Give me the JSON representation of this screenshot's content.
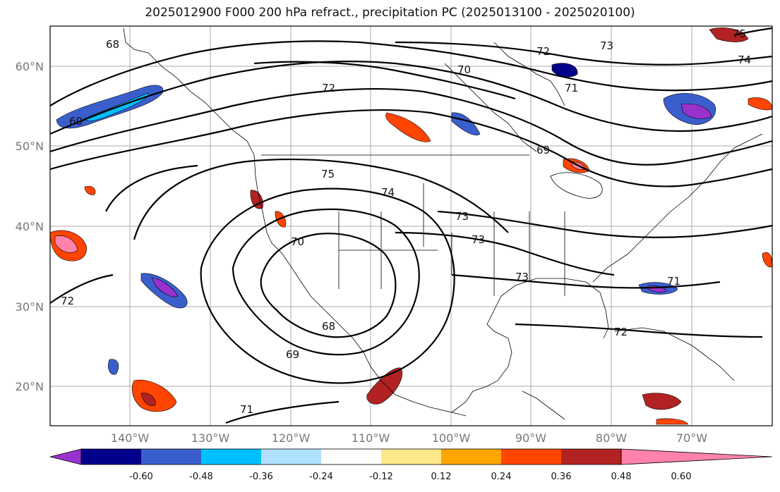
{
  "title": "2025012900 F000 200 hPa refract., precipitation PC (2025013100 - 2025020100)",
  "map": {
    "lat_labels": [
      "60°N",
      "50°N",
      "40°N",
      "30°N",
      "20°N"
    ],
    "lon_labels": [
      "140°W",
      "130°W",
      "120°W",
      "110°W",
      "100°W",
      "90°W",
      "80°W",
      "70°W"
    ],
    "contour_labels": [
      "68",
      "69",
      "70",
      "71",
      "72",
      "73",
      "74",
      "75"
    ],
    "colorbar": {
      "ticks": [
        "-0.60",
        "-0.48",
        "-0.36",
        "-0.24",
        "-0.12",
        "0.12",
        "0.24",
        "0.36",
        "0.48",
        "0.60"
      ],
      "colors": [
        "#9932cc",
        "#00008b",
        "#3a5fcd",
        "#00bfff",
        "#b0e0ff",
        "#ffffff",
        "#ffe88a",
        "#ffa500",
        "#ff4500",
        "#b22222",
        "#ff82ab"
      ]
    }
  }
}
